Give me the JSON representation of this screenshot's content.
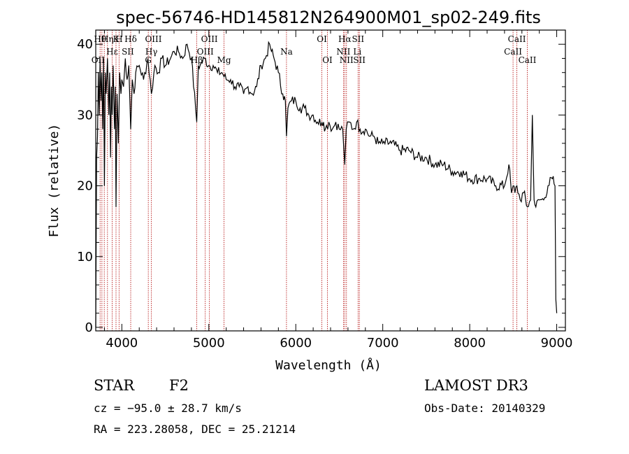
{
  "chart_data": {
    "type": "line",
    "title": "spec-56746-HD145812N264900M01_sp02-249.fits",
    "xlabel": "Wavelength (Å)",
    "ylabel": "Flux (relative)",
    "xlim": [
      3700,
      9100
    ],
    "ylim": [
      -0.5,
      42
    ],
    "xticks": [
      4000,
      5000,
      6000,
      7000,
      8000,
      9000
    ],
    "yticks": [
      0,
      10,
      20,
      30,
      40
    ],
    "series": [
      {
        "name": "spectrum",
        "x": [
          3700,
          3710,
          3720,
          3730,
          3740,
          3750,
          3760,
          3770,
          3780,
          3790,
          3800,
          3810,
          3820,
          3835,
          3850,
          3860,
          3870,
          3880,
          3889,
          3900,
          3915,
          3925,
          3933,
          3945,
          3955,
          3960,
          3968,
          3975,
          3990,
          4000,
          4020,
          4040,
          4060,
          4080,
          4102,
          4120,
          4140,
          4160,
          4200,
          4250,
          4300,
          4340,
          4380,
          4420,
          4460,
          4500,
          4560,
          4600,
          4650,
          4700,
          4750,
          4800,
          4861,
          4880,
          4900,
          4950,
          5000,
          5050,
          5100,
          5150,
          5200,
          5250,
          5300,
          5350,
          5400,
          5450,
          5500,
          5550,
          5600,
          5650,
          5700,
          5720,
          5750,
          5800,
          5850,
          5880,
          5893,
          5910,
          5950,
          6000,
          6050,
          6100,
          6150,
          6200,
          6250,
          6300,
          6320,
          6340,
          6380,
          6420,
          6460,
          6500,
          6540,
          6563,
          6580,
          6620,
          6660,
          6700,
          6740,
          6800,
          6850,
          6900,
          6950,
          7000,
          7100,
          7200,
          7300,
          7400,
          7500,
          7600,
          7700,
          7800,
          7900,
          8000,
          8100,
          8200,
          8300,
          8400,
          8450,
          8480,
          8498,
          8520,
          8542,
          8580,
          8620,
          8662,
          8700,
          8720,
          8740,
          8760,
          8800,
          8850,
          8900,
          8950,
          8980,
          8990,
          9000
        ],
        "y": [
          0,
          24,
          27,
          36,
          30,
          38,
          32,
          36,
          28,
          38,
          20,
          36,
          33,
          38,
          30,
          36,
          24,
          34,
          30,
          37,
          28,
          34,
          17,
          33,
          29,
          26,
          31,
          36,
          33,
          35,
          34,
          38,
          35,
          37,
          28,
          35,
          33,
          36,
          37,
          35,
          38,
          33,
          37,
          36,
          38,
          37,
          38,
          39,
          39,
          38,
          40,
          38,
          29,
          37,
          37,
          38,
          37,
          37,
          36,
          36,
          35,
          35,
          34,
          34,
          33,
          34,
          33,
          34,
          37,
          38,
          40,
          39,
          38,
          36,
          33,
          32,
          27,
          31,
          32,
          32,
          31,
          31,
          30,
          30,
          29,
          29,
          29,
          28,
          29,
          28,
          29,
          28,
          28,
          23,
          28,
          29,
          28,
          29,
          28,
          28,
          27,
          27,
          26,
          26,
          26,
          25,
          25,
          24,
          24,
          23,
          23,
          22,
          22,
          21,
          21,
          21,
          20,
          20,
          23,
          19,
          20,
          19,
          20,
          18,
          19,
          17,
          18,
          30,
          18,
          17,
          18,
          18,
          20,
          21,
          20,
          4,
          2
        ]
      }
    ],
    "reference_lines": [
      3750,
      3771,
      3798,
      3835,
      3889,
      3933,
      3968,
      4102,
      4304,
      4340,
      4861,
      4959,
      5007,
      5175,
      5893,
      6300,
      6364,
      6548,
      6563,
      6583,
      6716,
      6731,
      8498,
      8542,
      8662
    ],
    "annotations": [
      {
        "text": "Hθ",
        "x": 3750,
        "row": 1
      },
      {
        "text": "OII",
        "x": 3727,
        "row": 2
      },
      {
        "text": "Hη",
        "x": 3835,
        "row": 1
      },
      {
        "text": "Hε",
        "x": 3889,
        "row": 1.6
      },
      {
        "text": "K",
        "x": 3933,
        "row": 1
      },
      {
        "text": "H",
        "x": 3968,
        "row": 1
      },
      {
        "text": "Hδ",
        "x": 4102,
        "row": 1
      },
      {
        "text": "SII",
        "x": 4069,
        "row": 1.6
      },
      {
        "text": "OIII",
        "x": 4363,
        "row": 1
      },
      {
        "text": "Hγ",
        "x": 4340,
        "row": 1.6
      },
      {
        "text": "G",
        "x": 4304,
        "row": 2
      },
      {
        "text": "OIII",
        "x": 5007,
        "row": 1
      },
      {
        "text": "OIII",
        "x": 4959,
        "row": 1.6
      },
      {
        "text": "Hβ",
        "x": 4861,
        "row": 2
      },
      {
        "text": "Mg",
        "x": 5175,
        "row": 2
      },
      {
        "text": "Na",
        "x": 5893,
        "row": 1.6
      },
      {
        "text": "OI",
        "x": 6300,
        "row": 1
      },
      {
        "text": "OI",
        "x": 6364,
        "row": 2
      },
      {
        "text": "Hα",
        "x": 6563,
        "row": 1
      },
      {
        "text": "SII",
        "x": 6716,
        "row": 1
      },
      {
        "text": "NII",
        "x": 6548,
        "row": 1.6
      },
      {
        "text": "NII",
        "x": 6583,
        "row": 2
      },
      {
        "text": "Li",
        "x": 6708,
        "row": 1.6
      },
      {
        "text": "SII",
        "x": 6731,
        "row": 2
      },
      {
        "text": "CaII",
        "x": 8542,
        "row": 1
      },
      {
        "text": "CaII",
        "x": 8498,
        "row": 1.6
      },
      {
        "text": "CaII",
        "x": 8662,
        "row": 2
      }
    ]
  },
  "info": {
    "class_label": "STAR",
    "subclass": "F2",
    "survey": "LAMOST DR3",
    "cz": "cz = −95.0 ± 28.7 km/s",
    "obs_date": "Obs-Date: 20140329",
    "coords": "RA = 223.28058, DEC =  25.21214"
  },
  "colors": {
    "spectrum": "#000000",
    "reference_line": "#b00000"
  }
}
